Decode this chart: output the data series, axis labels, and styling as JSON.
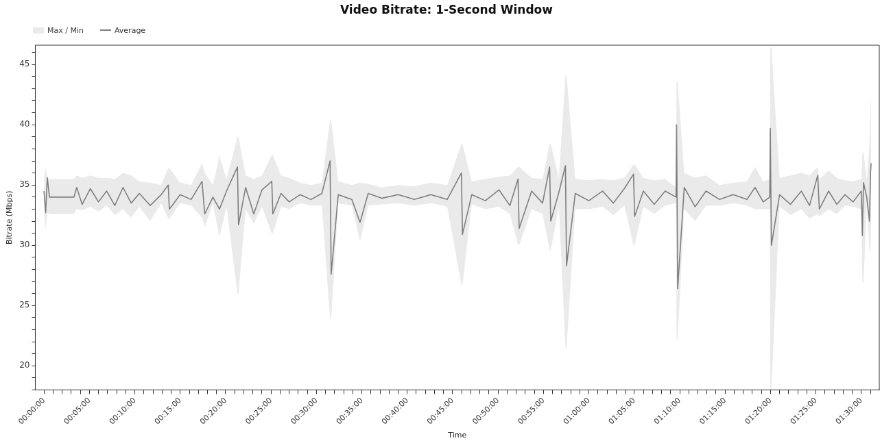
{
  "chart_data": {
    "type": "line",
    "title": "Video Bitrate: 1-Second Window",
    "annotations": [
      "Max / Min"
    ],
    "xlabel": "Time",
    "ylabel": "Bitrate (Mbps)",
    "legend": "top left",
    "grid": false,
    "marker": "none",
    "line_style": "solid",
    "xlim": [
      -0.016,
      1.533
    ],
    "ylim": [
      18,
      46.6
    ],
    "yticks": [
      {
        "value": 18,
        "label": null
      },
      {
        "value": 19,
        "label": null
      },
      20,
      {
        "value": 21,
        "label": null
      },
      {
        "value": 22,
        "label": null
      },
      {
        "value": 23,
        "label": null
      },
      {
        "value": 24,
        "label": null
      },
      25,
      {
        "value": 26,
        "label": null
      },
      {
        "value": 27,
        "label": null
      },
      {
        "value": 28,
        "label": null
      },
      {
        "value": 29,
        "label": null
      },
      30,
      {
        "value": 31,
        "label": null
      },
      {
        "value": 32,
        "label": null
      },
      {
        "value": 33,
        "label": null
      },
      {
        "value": 34,
        "label": null
      },
      35,
      {
        "value": 36,
        "label": null
      },
      {
        "value": 37,
        "label": null
      },
      {
        "value": 38,
        "label": null
      },
      {
        "value": 39,
        "label": null
      },
      40,
      {
        "value": 41,
        "label": null
      },
      {
        "value": 42,
        "label": null
      },
      {
        "value": 43,
        "label": null
      },
      {
        "value": 44,
        "label": null
      },
      45,
      {
        "value": 46,
        "label": null
      }
    ],
    "xticks": [
      {
        "value": 0,
        "label": "00:00:00"
      },
      {
        "value": 0.0167,
        "label": null
      },
      {
        "value": 0.0333,
        "label": null
      },
      {
        "value": 0.05,
        "label": null
      },
      {
        "value": 0.0667,
        "label": null
      },
      {
        "value": 0.0833,
        "label": "00:05:00"
      },
      {
        "value": 0.1,
        "label": null
      },
      {
        "value": 0.1167,
        "label": null
      },
      {
        "value": 0.1333,
        "label": null
      },
      {
        "value": 0.15,
        "label": null
      },
      {
        "value": 0.1667,
        "label": "00:10:00"
      },
      {
        "value": 0.1833,
        "label": null
      },
      {
        "value": 0.2,
        "label": null
      },
      {
        "value": 0.2167,
        "label": null
      },
      {
        "value": 0.2333,
        "label": null
      },
      {
        "value": 0.25,
        "label": "00:15:00"
      },
      {
        "value": 0.2667,
        "label": null
      },
      {
        "value": 0.2833,
        "label": null
      },
      {
        "value": 0.3,
        "label": null
      },
      {
        "value": 0.3167,
        "label": null
      },
      {
        "value": 0.3333,
        "label": "00:20:00"
      },
      {
        "value": 0.35,
        "label": null
      },
      {
        "value": 0.3667,
        "label": null
      },
      {
        "value": 0.3833,
        "label": null
      },
      {
        "value": 0.4,
        "label": null
      },
      {
        "value": 0.4167,
        "label": "00:25:00"
      },
      {
        "value": 0.4333,
        "label": null
      },
      {
        "value": 0.45,
        "label": null
      },
      {
        "value": 0.4667,
        "label": null
      },
      {
        "value": 0.4833,
        "label": null
      },
      {
        "value": 0.5,
        "label": "00:30:00"
      },
      {
        "value": 0.5167,
        "label": null
      },
      {
        "value": 0.5333,
        "label": null
      },
      {
        "value": 0.55,
        "label": null
      },
      {
        "value": 0.5667,
        "label": null
      },
      {
        "value": 0.5833,
        "label": "00:35:00"
      },
      {
        "value": 0.6,
        "label": null
      },
      {
        "value": 0.6167,
        "label": null
      },
      {
        "value": 0.6333,
        "label": null
      },
      {
        "value": 0.65,
        "label": null
      },
      {
        "value": 0.6667,
        "label": "00:40:00"
      },
      {
        "value": 0.6833,
        "label": null
      },
      {
        "value": 0.7,
        "label": null
      },
      {
        "value": 0.7167,
        "label": null
      },
      {
        "value": 0.7333,
        "label": null
      },
      {
        "value": 0.75,
        "label": "00:45:00"
      },
      {
        "value": 0.7667,
        "label": null
      },
      {
        "value": 0.7833,
        "label": null
      },
      {
        "value": 0.8,
        "label": null
      },
      {
        "value": 0.8167,
        "label": null
      },
      {
        "value": 0.8333,
        "label": "00:50:00"
      },
      {
        "value": 0.85,
        "label": null
      },
      {
        "value": 0.8667,
        "label": null
      },
      {
        "value": 0.8833,
        "label": null
      },
      {
        "value": 0.9,
        "label": null
      },
      {
        "value": 0.9167,
        "label": "00:55:00"
      },
      {
        "value": 0.9333,
        "label": null
      },
      {
        "value": 0.95,
        "label": null
      },
      {
        "value": 0.9667,
        "label": null
      },
      {
        "value": 0.9833,
        "label": null
      },
      {
        "value": 1,
        "label": "01:00:00"
      },
      {
        "value": 1.0167,
        "label": null
      },
      {
        "value": 1.0333,
        "label": null
      },
      {
        "value": 1.05,
        "label": null
      },
      {
        "value": 1.0667,
        "label": null
      },
      {
        "value": 1.0833,
        "label": "01:05:00"
      },
      {
        "value": 1.1,
        "label": null
      },
      {
        "value": 1.1167,
        "label": null
      },
      {
        "value": 1.1333,
        "label": null
      },
      {
        "value": 1.15,
        "label": null
      },
      {
        "value": 1.1667,
        "label": "01:10:00"
      },
      {
        "value": 1.1833,
        "label": null
      },
      {
        "value": 1.2,
        "label": null
      },
      {
        "value": 1.2167,
        "label": null
      },
      {
        "value": 1.2333,
        "label": null
      },
      {
        "value": 1.25,
        "label": "01:15:00"
      },
      {
        "value": 1.2667,
        "label": null
      },
      {
        "value": 1.2833,
        "label": null
      },
      {
        "value": 1.3,
        "label": null
      },
      {
        "value": 1.3167,
        "label": null
      },
      {
        "value": 1.3333,
        "label": "01:20:00"
      },
      {
        "value": 1.35,
        "label": null
      },
      {
        "value": 1.3667,
        "label": null
      },
      {
        "value": 1.3833,
        "label": null
      },
      {
        "value": 1.4,
        "label": null
      },
      {
        "value": 1.4167,
        "label": "01:25:00"
      },
      {
        "value": 1.4333,
        "label": null
      },
      {
        "value": 1.45,
        "label": null
      },
      {
        "value": 1.4667,
        "label": null
      },
      {
        "value": 1.4833,
        "label": null
      },
      {
        "value": 1.5,
        "label": "01:30:00"
      },
      {
        "value": 1.5167,
        "label": null
      }
    ],
    "x": [
      0,
      0.003,
      0.006,
      0.01,
      0.055,
      0.06,
      0.07,
      0.085,
      0.1,
      0.115,
      0.13,
      0.145,
      0.16,
      0.175,
      0.195,
      0.215,
      0.228,
      0.23,
      0.25,
      0.27,
      0.29,
      0.295,
      0.31,
      0.322,
      0.335,
      0.355,
      0.357,
      0.37,
      0.385,
      0.4,
      0.418,
      0.42,
      0.435,
      0.45,
      0.47,
      0.49,
      0.51,
      0.525,
      0.527,
      0.54,
      0.565,
      0.58,
      0.595,
      0.62,
      0.65,
      0.68,
      0.71,
      0.74,
      0.766,
      0.768,
      0.785,
      0.81,
      0.835,
      0.855,
      0.87,
      0.872,
      0.895,
      0.915,
      0.928,
      0.93,
      0.945,
      0.957,
      0.959,
      0.975,
      1,
      1.025,
      1.045,
      1.065,
      1.082,
      1.084,
      1.1,
      1.12,
      1.14,
      1.16,
      1.161,
      1.163,
      1.175,
      1.195,
      1.215,
      1.24,
      1.265,
      1.29,
      1.305,
      1.32,
      1.332,
      1.333,
      1.335,
      1.35,
      1.37,
      1.39,
      1.405,
      1.42,
      1.423,
      1.44,
      1.455,
      1.47,
      1.485,
      1.5,
      1.502,
      1.504,
      1.51,
      1.515,
      1.517,
      1.518
    ],
    "series": [
      {
        "name": "Average",
        "color": "#7f7f7f",
        "lower": [
          32.7,
          31.3,
          32.7,
          32.6,
          32.6,
          33,
          32.9,
          33.2,
          32.8,
          33.3,
          32.5,
          33,
          32.3,
          33.2,
          32,
          33.5,
          32.2,
          32.2,
          33.5,
          33.3,
          32.3,
          31.5,
          33.5,
          30.7,
          33.2,
          26,
          26,
          33,
          31.8,
          33.2,
          31,
          31,
          33.2,
          33,
          33.5,
          33.3,
          33.3,
          23.9,
          23.9,
          33.5,
          33.3,
          30.3,
          33.3,
          33.4,
          33.5,
          33.3,
          33.5,
          33.2,
          26.7,
          26.7,
          33.4,
          33,
          33.2,
          32.6,
          30,
          30,
          33,
          32.6,
          29.6,
          29.6,
          33.2,
          21.5,
          21.5,
          33,
          33,
          33.2,
          32.5,
          33.3,
          30,
          30,
          33.2,
          32.6,
          33.3,
          33.5,
          22.2,
          22.2,
          33,
          32,
          33.3,
          33.3,
          33.5,
          33.3,
          33,
          33,
          33,
          18,
          18,
          33.2,
          32.5,
          33,
          32.2,
          32.6,
          32.4,
          33,
          32.6,
          33.3,
          33.2,
          33,
          26.9,
          26.9,
          33.3,
          29.5,
          29.5,
          32
        ],
        "upper": [
          35.5,
          36.5,
          35.7,
          35.5,
          35.5,
          35.8,
          35.6,
          35.8,
          35.6,
          35.6,
          35.5,
          36,
          35.8,
          35.3,
          35.2,
          35,
          36.4,
          36.4,
          35.2,
          35,
          36.8,
          36,
          35,
          37.4,
          35.5,
          39,
          39,
          35.8,
          35.5,
          35.8,
          37.5,
          37.5,
          35.8,
          35.6,
          35.2,
          35,
          35.2,
          40.4,
          40.4,
          35.3,
          35,
          35.2,
          35.1,
          34.8,
          35,
          34.9,
          35.2,
          35,
          38.4,
          38.4,
          35.3,
          35.5,
          35.7,
          35.8,
          36.5,
          36.5,
          35.6,
          35.5,
          38.4,
          38.4,
          35.6,
          44.1,
          44.1,
          35.5,
          35.4,
          35.5,
          35.4,
          35.6,
          36.7,
          36.7,
          35.6,
          35.4,
          35.5,
          34.8,
          43.6,
          43.6,
          36,
          35.6,
          35.8,
          35,
          35.2,
          35.3,
          36.5,
          35.3,
          35.5,
          46.4,
          46.4,
          35.6,
          35.8,
          36,
          35.8,
          36.5,
          35.5,
          36.2,
          35.6,
          35.4,
          35.3,
          35.5,
          37.7,
          37.7,
          35.4,
          38.4,
          42,
          42
        ],
        "values": [
          34.5,
          32.7,
          35.6,
          34,
          34,
          34.8,
          33.4,
          34.7,
          33.6,
          34.5,
          33.3,
          34.8,
          33.5,
          34.3,
          33.3,
          34.2,
          35,
          33,
          34.2,
          33.8,
          35.3,
          32.6,
          34,
          33,
          34.5,
          36.5,
          31.7,
          34.8,
          32.6,
          34.6,
          35.3,
          32.6,
          34.3,
          33.6,
          34.2,
          33.8,
          34.3,
          37,
          27.6,
          34.2,
          33.8,
          31.9,
          34.3,
          33.9,
          34.2,
          33.8,
          34.2,
          33.8,
          36,
          30.9,
          34.2,
          33.7,
          34.6,
          33.3,
          35.5,
          31.4,
          34.5,
          33.5,
          36.5,
          32,
          34.4,
          36.6,
          28.3,
          34.3,
          33.7,
          34.5,
          33.5,
          34.7,
          35.9,
          32.4,
          34.5,
          33.4,
          34.5,
          34,
          40,
          26.4,
          34.8,
          33.2,
          34.5,
          33.8,
          34.2,
          33.8,
          34.8,
          33.6,
          34,
          39.7,
          30,
          34.2,
          33.4,
          34.5,
          33.3,
          35.8,
          33,
          34.5,
          33.4,
          34.2,
          33.6,
          34.5,
          30.8,
          35.2,
          34,
          32,
          36.1,
          36.8
        ]
      }
    ]
  }
}
